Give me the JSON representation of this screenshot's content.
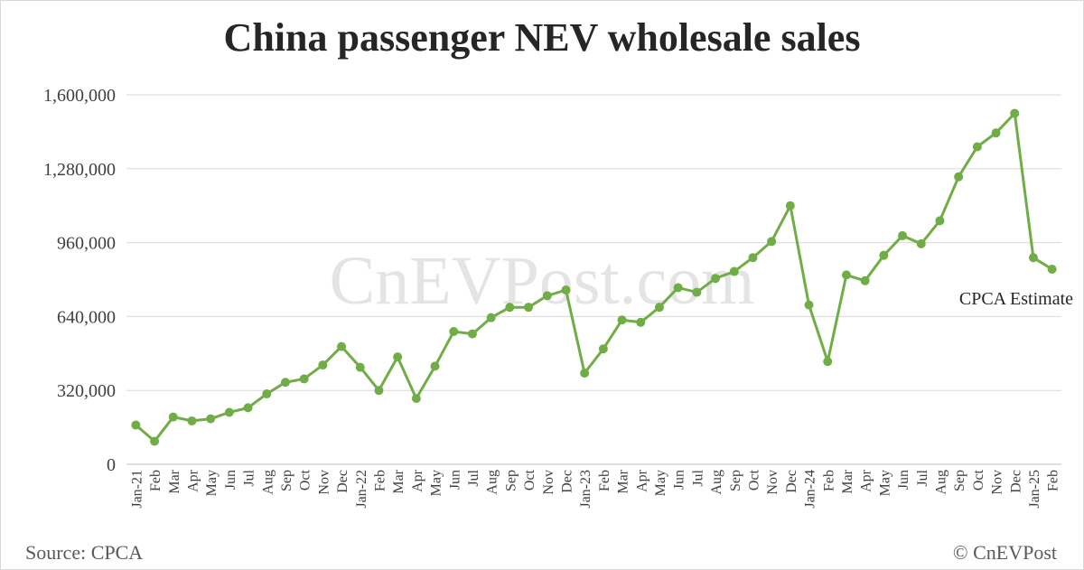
{
  "chart_data": {
    "type": "line",
    "title": "China passenger NEV wholesale sales",
    "xlabel": "",
    "ylabel": "",
    "ylim": [
      0,
      1600000
    ],
    "yticks": [
      "0",
      "320,000",
      "640,000",
      "960,000",
      "1,280,000",
      "1,600,000"
    ],
    "grid": true,
    "categories": [
      "Jan-21",
      "Feb",
      "Mar",
      "Apr",
      "May",
      "Jun",
      "Jul",
      "Aug",
      "Sep",
      "Oct",
      "Nov",
      "Dec",
      "Jan-22",
      "Feb",
      "Mar",
      "Apr",
      "May",
      "Jun",
      "Jul",
      "Aug",
      "Sep",
      "Oct",
      "Nov",
      "Dec",
      "Jan-23",
      "Feb",
      "Mar",
      "Apr",
      "May",
      "Jun",
      "Jul",
      "Aug",
      "Sep",
      "Oct",
      "Nov",
      "Dec",
      "Jan-24",
      "Feb",
      "Mar",
      "Apr",
      "May",
      "Jun",
      "Jul",
      "Aug",
      "Sep",
      "Oct",
      "Nov",
      "Dec",
      "Jan-25",
      "Feb"
    ],
    "series": [
      {
        "color": "#70ad47",
        "values": [
          170000,
          100000,
          205000,
          188000,
          197000,
          225000,
          245000,
          305000,
          355000,
          370000,
          430000,
          510000,
          420000,
          320000,
          465000,
          285000,
          425000,
          575000,
          565000,
          635000,
          680000,
          680000,
          730000,
          755000,
          395000,
          500000,
          625000,
          615000,
          680000,
          765000,
          745000,
          805000,
          835000,
          895000,
          965000,
          1120000,
          690000,
          445000,
          820000,
          795000,
          905000,
          990000,
          955000,
          1055000,
          1245000,
          1375000,
          1435000,
          1520000,
          895000,
          845000
        ]
      }
    ],
    "annotations": [
      {
        "text": "CPCA Estimate"
      }
    ],
    "watermark": "CnEVPost.com"
  },
  "footer": {
    "source": "Source: CPCA",
    "copyright": "© CnEVPost"
  }
}
